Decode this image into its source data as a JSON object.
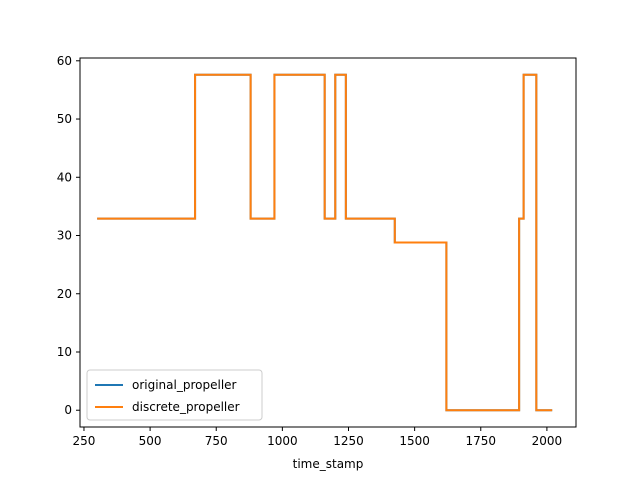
{
  "chart_data": {
    "type": "line",
    "title": "",
    "xlabel": "time_stamp",
    "ylabel": "",
    "xlim": [
      235,
      2110
    ],
    "ylim": [
      -2.88,
      60.48
    ],
    "xticks": [
      250,
      500,
      750,
      1000,
      1250,
      1500,
      1750,
      2000
    ],
    "yticks": [
      0,
      10,
      20,
      30,
      40,
      50,
      60
    ],
    "grid": false,
    "legend_position": "lower-left",
    "series": [
      {
        "name": "original_propeller",
        "color": "#1f77b4",
        "step": true,
        "points": [
          [
            300,
            32.9
          ],
          [
            670,
            32.9
          ],
          [
            670,
            57.6
          ],
          [
            880,
            57.6
          ],
          [
            880,
            32.9
          ],
          [
            970,
            32.9
          ],
          [
            970,
            57.6
          ],
          [
            1160,
            57.6
          ],
          [
            1160,
            32.9
          ],
          [
            1200,
            32.9
          ],
          [
            1200,
            57.6
          ],
          [
            1240,
            57.6
          ],
          [
            1240,
            32.9
          ],
          [
            1425,
            32.9
          ],
          [
            1425,
            28.8
          ],
          [
            1620,
            28.8
          ],
          [
            1620,
            0
          ],
          [
            1895,
            0
          ],
          [
            1895,
            32.9
          ],
          [
            1912,
            32.9
          ],
          [
            1912,
            57.6
          ],
          [
            1960,
            57.6
          ],
          [
            1960,
            0
          ],
          [
            2020,
            0
          ]
        ]
      },
      {
        "name": "discrete_propeller",
        "color": "#ff7f0e",
        "step": true,
        "points": [
          [
            300,
            32.9
          ],
          [
            670,
            32.9
          ],
          [
            670,
            57.6
          ],
          [
            880,
            57.6
          ],
          [
            880,
            32.9
          ],
          [
            970,
            32.9
          ],
          [
            970,
            57.6
          ],
          [
            1160,
            57.6
          ],
          [
            1160,
            32.9
          ],
          [
            1200,
            32.9
          ],
          [
            1200,
            57.6
          ],
          [
            1240,
            57.6
          ],
          [
            1240,
            32.9
          ],
          [
            1425,
            32.9
          ],
          [
            1425,
            28.8
          ],
          [
            1620,
            28.8
          ],
          [
            1620,
            0
          ],
          [
            1895,
            0
          ],
          [
            1895,
            32.9
          ],
          [
            1912,
            32.9
          ],
          [
            1912,
            57.6
          ],
          [
            1960,
            57.6
          ],
          [
            1960,
            0
          ],
          [
            2020,
            0
          ]
        ]
      }
    ]
  }
}
